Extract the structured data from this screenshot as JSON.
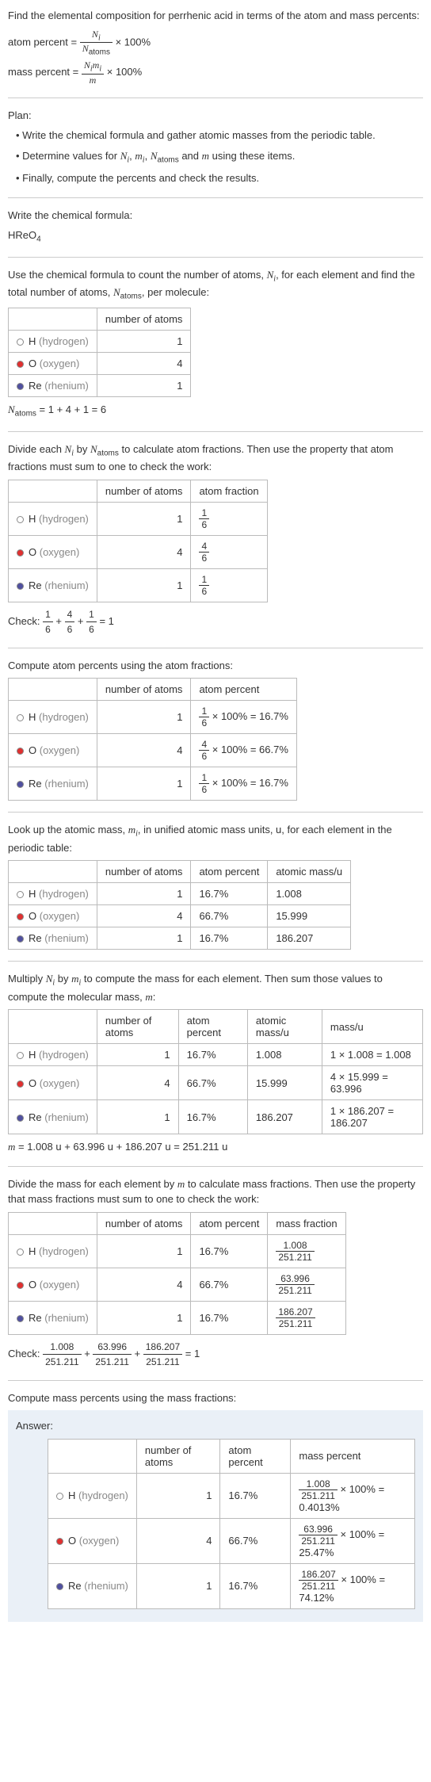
{
  "intro": {
    "line1": "Find the elemental composition for perrhenic acid in terms of the atom and mass percents:",
    "atom_percent_lhs": "atom percent =",
    "atom_percent_rhs": "× 100%",
    "mass_percent_lhs": "mass percent =",
    "mass_percent_rhs": "× 100%",
    "frac1_num": "N_i",
    "frac1_den": "N_atoms",
    "frac2_num": "N_i m_i",
    "frac2_den": "m"
  },
  "plan": {
    "heading": "Plan:",
    "b1": "• Write the chemical formula and gather atomic masses from the periodic table.",
    "b2": "• Determine values for N_i, m_i, N_atoms and m using these items.",
    "b3": "• Finally, compute the percents and check the results."
  },
  "formula_sec": {
    "heading": "Write the chemical formula:",
    "formula": "HReO",
    "sub": "4"
  },
  "count_sec": {
    "heading": "Use the chemical formula to count the number of atoms, N_i, for each element and find the total number of atoms, N_atoms, per molecule:",
    "col1": "",
    "col2": "number of atoms",
    "total_eq": "N_atoms = 1 + 4 + 1 = 6"
  },
  "elements": [
    {
      "name": "H",
      "label": "(hydrogen)",
      "dot": "hydrogen"
    },
    {
      "name": "O",
      "label": "(oxygen)",
      "dot": "oxygen"
    },
    {
      "name": "Re",
      "label": "(rhenium)",
      "dot": "rhenium"
    }
  ],
  "atoms": [
    "1",
    "4",
    "1"
  ],
  "atomfrac_sec": {
    "heading": "Divide each N_i by N_atoms to calculate atom fractions. Then use the property that atom fractions must sum to one to check the work:",
    "col3": "atom fraction",
    "check_label": "Check:",
    "check_eq": "= 1",
    "fracs": [
      {
        "n": "1",
        "d": "6"
      },
      {
        "n": "4",
        "d": "6"
      },
      {
        "n": "1",
        "d": "6"
      }
    ]
  },
  "atompct_sec": {
    "heading": "Compute atom percents using the atom fractions:",
    "col3": "atom percent",
    "rows": [
      {
        "n": "1",
        "d": "6",
        "r": "× 100% = 16.7%"
      },
      {
        "n": "4",
        "d": "6",
        "r": "× 100% = 66.7%"
      },
      {
        "n": "1",
        "d": "6",
        "r": "× 100% = 16.7%"
      }
    ]
  },
  "pcts": [
    "16.7%",
    "66.7%",
    "16.7%"
  ],
  "amu_sec": {
    "heading": "Look up the atomic mass, m_i, in unified atomic mass units, u, for each element in the periodic table:",
    "col4": "atomic mass/u",
    "masses": [
      "1.008",
      "15.999",
      "186.207"
    ]
  },
  "mult_sec": {
    "heading": "Multiply N_i by m_i to compute the mass for each element. Then sum those values to compute the molecular mass, m:",
    "col5": "mass/u",
    "rows": [
      "1 × 1.008 = 1.008",
      "4 × 15.999 = 63.996",
      "1 × 186.207 = 186.207"
    ],
    "total": "m = 1.008 u + 63.996 u + 186.207 u = 251.211 u"
  },
  "massfrac_sec": {
    "heading": "Divide the mass for each element by m to calculate mass fractions. Then use the property that mass fractions must sum to one to check the work:",
    "col5": "mass fraction",
    "fracs": [
      {
        "n": "1.008",
        "d": "251.211"
      },
      {
        "n": "63.996",
        "d": "251.211"
      },
      {
        "n": "186.207",
        "d": "251.211"
      }
    ],
    "check_label": "Check:",
    "check_eq": "= 1"
  },
  "masspct_sec": {
    "heading": "Compute mass percents using the mass fractions:"
  },
  "answer": {
    "label": "Answer:",
    "col5": "mass percent",
    "rows": [
      {
        "n": "1.008",
        "d": "251.211",
        "r": "× 100% = 0.4013%"
      },
      {
        "n": "63.996",
        "d": "251.211",
        "r": "× 100% = 25.47%"
      },
      {
        "n": "186.207",
        "d": "251.211",
        "r": "× 100% = 74.12%"
      }
    ]
  }
}
